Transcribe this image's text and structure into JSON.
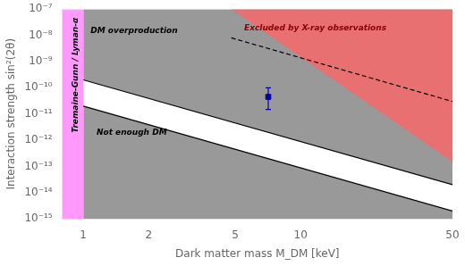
{
  "chart_data": {
    "type": "line",
    "xlabel": "Dark matter mass M_DM [keV]",
    "ylabel": "Interaction strength sin²(2θ)",
    "log": true,
    "grid": false,
    "xlim": [
      0.8,
      50
    ],
    "ylim": [
      1e-15,
      1e-07
    ],
    "xticks": [
      1,
      2,
      5,
      10,
      50
    ],
    "yticks": [
      {
        "value": 1e-15,
        "label": "10⁻¹⁵"
      },
      {
        "value": 1e-14,
        "label": "10⁻¹⁴"
      },
      {
        "value": 1e-13,
        "label": "10⁻¹³"
      },
      {
        "value": 1e-12,
        "label": "10⁻¹²"
      },
      {
        "value": 1e-11,
        "label": "10⁻¹¹"
      },
      {
        "value": 1e-10,
        "label": "10⁻¹⁰"
      },
      {
        "value": 1e-09,
        "label": "10⁻⁹"
      },
      {
        "value": 1e-08,
        "label": "10⁻⁸"
      },
      {
        "value": 1e-07,
        "label": "10⁻⁷"
      }
    ],
    "series": [
      {
        "type": "area",
        "color": "#999999",
        "x": [
          1.0,
          50
        ],
        "lower": [
          2e-10,
          2e-14
        ],
        "upper": [
          1e-07,
          1e-07
        ]
      },
      {
        "type": "area",
        "color": "#999999",
        "x": [
          1.0,
          50
        ],
        "lower": [
          1e-15,
          1e-15
        ],
        "upper": [
          2e-11,
          2e-15
        ]
      },
      {
        "type": "area",
        "color": "#E87070",
        "x": [
          4.8,
          50
        ],
        "lower": [
          1e-07,
          1.5e-13
        ],
        "upper": [
          1e-07,
          1e-07
        ]
      },
      {
        "type": "line",
        "color": "#000000",
        "line_style": "solid",
        "x": [
          1.0,
          50
        ],
        "values": [
          2e-10,
          2e-14
        ]
      },
      {
        "type": "line",
        "color": "#000000",
        "line_style": "solid",
        "x": [
          1.0,
          50
        ],
        "values": [
          2e-11,
          2e-15
        ]
      },
      {
        "type": "line",
        "color": "#000000",
        "line_style": "dashed",
        "x": [
          4.8,
          50
        ],
        "values": [
          8e-09,
          3e-11
        ]
      },
      {
        "type": "area",
        "color": "#FF99FF",
        "x": [
          0.8,
          1.0
        ],
        "lower": [
          1e-15,
          1e-15
        ],
        "upper": [
          1e-07,
          1e-07
        ]
      },
      {
        "type": "scatter",
        "color": "#0000AA",
        "marker": "square",
        "x": [
          7.1
        ],
        "values": [
          4.5e-11
        ],
        "yerr_lo": [
          3e-11
        ],
        "yerr_hi": [
          5.5e-11
        ]
      }
    ],
    "annotations": [
      {
        "text": "Tremaine-Gunn / Lyman-α",
        "x": 0.92,
        "y": 3e-10,
        "color": "#000000"
      },
      {
        "text": "DM overproduction",
        "x": 1.08,
        "y": 1.5e-08,
        "color": "#000000"
      },
      {
        "text": "Excluded by X-ray observations",
        "x": 5.5,
        "y": 1.8e-08,
        "color": "#8B0000"
      },
      {
        "text": "Not enough DM",
        "x": 1.15,
        "y": 2e-12,
        "color": "#000000"
      }
    ]
  }
}
